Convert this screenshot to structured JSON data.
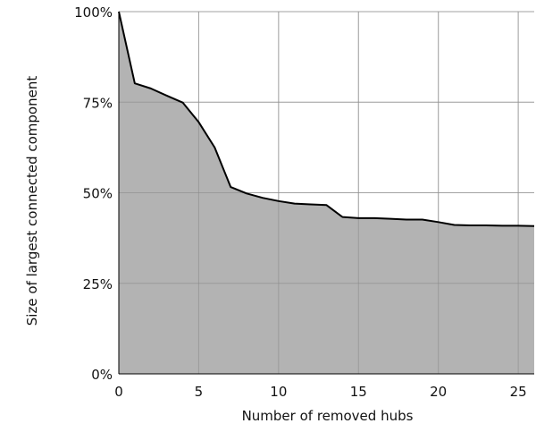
{
  "chart_data": {
    "type": "area",
    "xlabel": "Number of removed hubs",
    "ylabel": "Size of largest connected component",
    "xlim": [
      0,
      26
    ],
    "ylim": [
      0,
      100
    ],
    "x_ticks": [
      0,
      5,
      10,
      15,
      20,
      25
    ],
    "x_tick_labels": [
      "0",
      "5",
      "10",
      "15",
      "20",
      "25"
    ],
    "y_ticks": [
      0,
      25,
      50,
      75,
      100
    ],
    "y_tick_labels": [
      "0%",
      "25%",
      "50%",
      "75%",
      "100%"
    ],
    "grid": true,
    "fill_color": "#b3b3b3",
    "line_color": "#000000",
    "x": [
      0,
      1,
      2,
      3,
      4,
      5,
      6,
      7,
      8,
      9,
      10,
      11,
      12,
      13,
      14,
      15,
      16,
      17,
      18,
      19,
      20,
      21,
      22,
      23,
      24,
      25,
      26
    ],
    "values": [
      100,
      80.2,
      78.8,
      76.8,
      74.9,
      69.5,
      62.5,
      51.6,
      49.8,
      48.6,
      47.7,
      47.0,
      46.8,
      46.6,
      43.3,
      43.0,
      43.0,
      42.8,
      42.6,
      42.6,
      41.9,
      41.1,
      41.0,
      41.0,
      40.9,
      40.9,
      40.8
    ]
  }
}
